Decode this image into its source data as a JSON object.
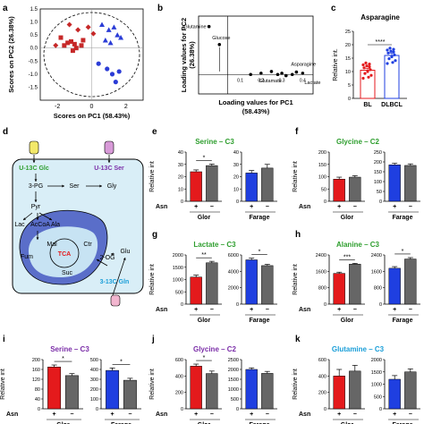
{
  "panel_letters": [
    "a",
    "b",
    "c",
    "d",
    "e",
    "f",
    "g",
    "h",
    "i",
    "j",
    "k"
  ],
  "colors": {
    "red": "#e41a1c",
    "blue": "#1f3fe0",
    "gray": "#666666",
    "green": "#2e9e2e",
    "purple": "#7b2ea8",
    "cyan": "#1a9ed8",
    "tca_fill": "#c7e3f3",
    "mito_fill": "#5a6ec9",
    "cell_fill": "#d9eef7"
  },
  "chart_data": [
    {
      "id": "a",
      "type": "scatter",
      "xlabel": "Scores on PC1 (58.43%)",
      "ylabel": "Scores on PC2 (26.38%)",
      "xlim": [
        -3,
        3
      ],
      "ylim": [
        -2,
        1.5
      ],
      "xticks": [
        "-2",
        "0",
        "2"
      ],
      "yticks": [
        "1.5",
        "1.0",
        "0.5",
        "0.0",
        "-0.5",
        "-1.0",
        "-1.5"
      ],
      "series": [
        {
          "marker": "square",
          "color": "#c62828",
          "x": [
            -1.8,
            -1.6,
            -1.4,
            -1.2,
            -1.0,
            -0.9,
            -0.6,
            -0.5,
            -1.1
          ],
          "y": [
            0.4,
            0.1,
            0.2,
            0.25,
            0.15,
            0.0,
            0.1,
            0.3,
            -0.1
          ]
        },
        {
          "marker": "diamond",
          "color": "#c62828",
          "x": [
            -1.3,
            -0.8,
            -0.2,
            0.1,
            -2.1
          ],
          "y": [
            0.9,
            0.7,
            0.8,
            0.55,
            0.1
          ]
        },
        {
          "marker": "triangle",
          "color": "#2b3cd6",
          "x": [
            0.6,
            1.0,
            1.3,
            1.5,
            0.8,
            1.1,
            1.7
          ],
          "y": [
            0.9,
            0.7,
            0.8,
            0.5,
            0.3,
            0.2,
            0.4
          ]
        },
        {
          "marker": "circle",
          "color": "#2b3cd6",
          "x": [
            0.4,
            0.9,
            1.2,
            1.4,
            1.6
          ],
          "y": [
            -0.6,
            -0.8,
            -1.0,
            -1.3,
            -0.9
          ]
        }
      ]
    },
    {
      "id": "b",
      "type": "scatter",
      "xlabel": "Loading values for PC1",
      "xlabel2": "(58.43%)",
      "ylabel": "Loading values for PC2",
      "ylabel2": "(26.38%)",
      "x": [
        -0.05,
        0.0,
        0.15,
        0.2,
        0.25,
        0.28,
        0.3,
        0.32,
        0.35,
        0.37,
        0.4
      ],
      "y": [
        1.0,
        0.7,
        0.2,
        0.22,
        0.25,
        0.2,
        0.22,
        0.18,
        0.2,
        0.24,
        0.22
      ],
      "labels": [
        {
          "text": "Glutamine"
        },
        {
          "text": "Glucose"
        },
        {
          "text": "Asparagine"
        },
        {
          "text": "Glutamate"
        },
        {
          "text": "Lactate"
        }
      ],
      "ticks": [
        "0.1",
        "0.2",
        "0.3",
        "0.4"
      ]
    },
    {
      "id": "c",
      "type": "bar",
      "title": "Asparagine",
      "ylabel": "Relative int.",
      "categories": [
        "BL",
        "DLBCL"
      ],
      "values": [
        10.5,
        16.0
      ],
      "errors": [
        0.7,
        0.9
      ],
      "ylim": [
        0,
        25
      ],
      "yticks": [
        "0",
        "5",
        "10",
        "15",
        "20",
        "25"
      ],
      "significance": "****"
    },
    {
      "id": "e",
      "type": "bar",
      "title": "Serine – C3",
      "ylabel": "Relative int",
      "groups": [
        {
          "name": "Glor",
          "values": [
            24,
            29
          ],
          "errors": [
            1.5,
            1.2
          ],
          "ylim": [
            0,
            40
          ],
          "yticks": [
            "0",
            "10",
            "20",
            "30",
            "40"
          ],
          "sig": "*"
        },
        {
          "name": "Farage",
          "values": [
            23,
            27
          ],
          "errors": [
            2,
            3
          ],
          "ylim": [
            0,
            40
          ],
          "yticks": [
            "0",
            "10",
            "20",
            "30",
            "40"
          ],
          "sig": ""
        }
      ]
    },
    {
      "id": "f",
      "type": "bar",
      "title": "Glycine – C2",
      "ylabel": "Relative int",
      "groups": [
        {
          "name": "Glor",
          "values": [
            90,
            98
          ],
          "errors": [
            8,
            6
          ],
          "ylim": [
            0,
            200
          ],
          "yticks": [
            "0",
            "50",
            "100",
            "150",
            "200"
          ],
          "sig": ""
        },
        {
          "name": "Farage",
          "values": [
            185,
            182
          ],
          "errors": [
            8,
            8
          ],
          "ylim": [
            0,
            250
          ],
          "yticks": [
            "0",
            "50",
            "100",
            "150",
            "200",
            "250"
          ],
          "sig": ""
        }
      ]
    },
    {
      "id": "g",
      "type": "bar",
      "title": "Lactate – C3",
      "ylabel": "Relative int",
      "groups": [
        {
          "name": "Glor",
          "values": [
            1100,
            1680
          ],
          "errors": [
            80,
            60
          ],
          "ylim": [
            0,
            2000
          ],
          "yticks": [
            "0",
            "500",
            "1000",
            "1500",
            "2000"
          ],
          "sig": "**"
        },
        {
          "name": "Farage",
          "values": [
            5400,
            4700
          ],
          "errors": [
            200,
            150
          ],
          "ylim": [
            0,
            6000
          ],
          "yticks": [
            "0",
            "2000",
            "4000",
            "6000"
          ],
          "sig": "*"
        }
      ]
    },
    {
      "id": "h",
      "type": "bar",
      "title": "Alanine – C3",
      "ylabel": "Relative int",
      "groups": [
        {
          "name": "Glor",
          "values": [
            1500,
            1950
          ],
          "errors": [
            60,
            40
          ],
          "ylim": [
            0,
            2400
          ],
          "yticks": [
            "0",
            "800",
            "1600",
            "2400"
          ],
          "sig": "***"
        },
        {
          "name": "Farage",
          "values": [
            1750,
            2200
          ],
          "errors": [
            80,
            70
          ],
          "ylim": [
            0,
            2400
          ],
          "yticks": [
            "0",
            "800",
            "1600",
            "2400"
          ],
          "sig": "*"
        }
      ]
    },
    {
      "id": "i",
      "type": "bar",
      "title": "Serine – C3",
      "ylabel": "Relative int",
      "groups": [
        {
          "name": "Glor",
          "values": [
            170,
            135
          ],
          "errors": [
            8,
            8
          ],
          "ylim": [
            0,
            200
          ],
          "yticks": [
            "0",
            "40",
            "80",
            "120",
            "160",
            "200"
          ],
          "sig": "*"
        },
        {
          "name": "Farage",
          "values": [
            390,
            290
          ],
          "errors": [
            25,
            20
          ],
          "ylim": [
            0,
            500
          ],
          "yticks": [
            "0",
            "100",
            "200",
            "300",
            "400",
            "500"
          ],
          "sig": "*"
        }
      ]
    },
    {
      "id": "j",
      "type": "bar",
      "title": "Glycine – C2",
      "ylabel": "Relative int",
      "groups": [
        {
          "name": "Glor",
          "values": [
            520,
            430
          ],
          "errors": [
            25,
            30
          ],
          "ylim": [
            0,
            600
          ],
          "yticks": [
            "0",
            "200",
            "400",
            "600"
          ],
          "sig": "*"
        },
        {
          "name": "Farage",
          "values": [
            2000,
            1800
          ],
          "errors": [
            80,
            100
          ],
          "ylim": [
            0,
            2500
          ],
          "yticks": [
            "0",
            "500",
            "1000",
            "1500",
            "2000",
            "2500"
          ],
          "sig": ""
        }
      ]
    },
    {
      "id": "k",
      "type": "bar",
      "title": "Glutamine – C3",
      "ylabel": "Relative int",
      "groups": [
        {
          "name": "Glor",
          "values": [
            400,
            460
          ],
          "errors": [
            80,
            70
          ],
          "ylim": [
            0,
            600
          ],
          "yticks": [
            "0",
            "200",
            "400",
            "600"
          ],
          "sig": ""
        },
        {
          "name": "Farage",
          "values": [
            1200,
            1500
          ],
          "errors": [
            150,
            120
          ],
          "ylim": [
            0,
            2000
          ],
          "yticks": [
            "0",
            "500",
            "1000",
            "1500",
            "2000"
          ],
          "sig": ""
        }
      ]
    }
  ],
  "asn_label": "Asn",
  "asn_signs": [
    "+",
    "−"
  ],
  "diagram_d": {
    "tracers": [
      "U-13C Glc",
      "U-13C Ser",
      "3-13C Gln"
    ],
    "metabolites": [
      "3-PG",
      "Ser",
      "Gly",
      "Pyr",
      "Lac",
      "Ala",
      "AcCoA",
      "Mal",
      "Ctr",
      "Fum",
      "TCA",
      "2-OG",
      "Glu",
      "Suc"
    ]
  }
}
